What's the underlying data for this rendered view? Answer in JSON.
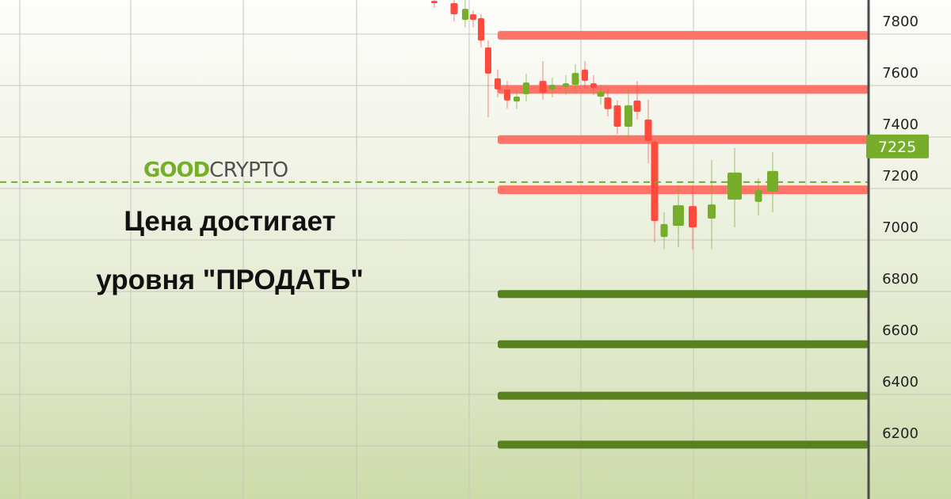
{
  "logo": {
    "part1": "GOOD",
    "part2": "CRYPTO"
  },
  "headline": {
    "line1": "Цена достигает",
    "line2": "уровня \"ПРОДАТЬ\""
  },
  "colors": {
    "up": "#76ad2a",
    "down": "#ff4b3e",
    "sell_level": "#ff7468",
    "buy_level": "#57801f",
    "price_line": "#76ad2a",
    "axis": "#4a4a4a"
  },
  "chart_data": {
    "type": "candlestick",
    "ylim": [
      6000,
      7950
    ],
    "y_ticks": [
      7800,
      7600,
      7400,
      7200,
      7000,
      6800,
      6600,
      6400,
      6200
    ],
    "grid": true,
    "current_price": 7225,
    "sell_levels": [
      7795,
      7585,
      7390,
      7195
    ],
    "buy_levels": [
      6790,
      6595,
      6395,
      6205
    ],
    "candles": [
      {
        "o": 7929,
        "h": 7932,
        "l": 7902,
        "c": 7926
      },
      {
        "o": 7920,
        "h": 7932,
        "l": 7849,
        "c": 7877
      },
      {
        "o": 7855,
        "h": 7932,
        "l": 7825,
        "c": 7898
      },
      {
        "o": 7877,
        "h": 7892,
        "l": 7825,
        "c": 7855
      },
      {
        "o": 7862,
        "h": 7877,
        "l": 7748,
        "c": 7775
      },
      {
        "o": 7748,
        "h": 7775,
        "l": 7477,
        "c": 7646
      },
      {
        "o": 7628,
        "h": 7662,
        "l": 7554,
        "c": 7585
      },
      {
        "o": 7585,
        "h": 7618,
        "l": 7511,
        "c": 7542
      },
      {
        "o": 7538,
        "h": 7585,
        "l": 7508,
        "c": 7557
      },
      {
        "o": 7566,
        "h": 7646,
        "l": 7538,
        "c": 7612
      },
      {
        "o": 7618,
        "h": 7695,
        "l": 7545,
        "c": 7572
      },
      {
        "o": 7585,
        "h": 7631,
        "l": 7554,
        "c": 7603
      },
      {
        "o": 7594,
        "h": 7640,
        "l": 7563,
        "c": 7609
      },
      {
        "o": 7603,
        "h": 7683,
        "l": 7575,
        "c": 7649
      },
      {
        "o": 7662,
        "h": 7695,
        "l": 7591,
        "c": 7618
      },
      {
        "o": 7609,
        "h": 7640,
        "l": 7563,
        "c": 7591
      },
      {
        "o": 7557,
        "h": 7603,
        "l": 7526,
        "c": 7575
      },
      {
        "o": 7554,
        "h": 7588,
        "l": 7480,
        "c": 7508
      },
      {
        "o": 7523,
        "h": 7542,
        "l": 7412,
        "c": 7440
      },
      {
        "o": 7440,
        "h": 7588,
        "l": 7394,
        "c": 7523
      },
      {
        "o": 7542,
        "h": 7618,
        "l": 7468,
        "c": 7498
      },
      {
        "o": 7468,
        "h": 7545,
        "l": 7298,
        "c": 7385
      },
      {
        "o": 7382,
        "h": 7391,
        "l": 6991,
        "c": 7074
      },
      {
        "o": 7012,
        "h": 7108,
        "l": 6963,
        "c": 7062
      },
      {
        "o": 7055,
        "h": 7209,
        "l": 6972,
        "c": 7135
      },
      {
        "o": 7132,
        "h": 7209,
        "l": 6963,
        "c": 7049
      },
      {
        "o": 7083,
        "h": 7311,
        "l": 6963,
        "c": 7138
      },
      {
        "o": 7157,
        "h": 7357,
        "l": 7049,
        "c": 7262
      },
      {
        "o": 7148,
        "h": 7240,
        "l": 7095,
        "c": 7194
      },
      {
        "o": 7188,
        "h": 7342,
        "l": 7108,
        "c": 7268
      }
    ]
  }
}
